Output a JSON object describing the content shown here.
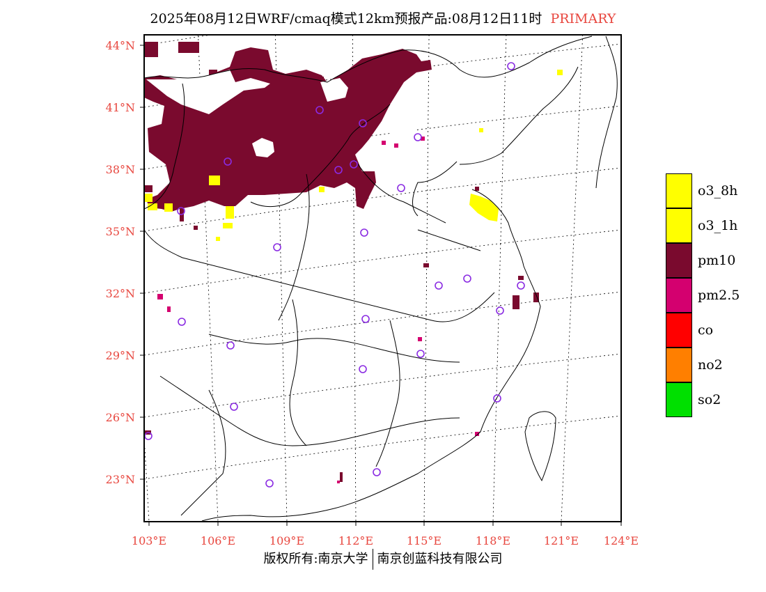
{
  "title": {
    "main": "2025年08月12日WRF/cmaq模式12km预报产品:08月12日11时",
    "tag": "PRIMARY",
    "tag_color": "#e8473f"
  },
  "axes": {
    "lat_labels": [
      "44°N",
      "41°N",
      "38°N",
      "35°N",
      "32°N",
      "29°N",
      "26°N",
      "23°N"
    ],
    "lon_labels": [
      "103°E",
      "106°E",
      "109°E",
      "112°E",
      "115°E",
      "118°E",
      "121°E",
      "124°E"
    ],
    "label_color": "#e8473f",
    "graticule": "dotted"
  },
  "legend": {
    "items": [
      {
        "label": "o3_8h",
        "color": "#ffff00"
      },
      {
        "label": "o3_1h",
        "color": "#ffff00"
      },
      {
        "label": "pm10",
        "color": "#7a0a2e"
      },
      {
        "label": "pm2.5",
        "color": "#d4006f"
      },
      {
        "label": "co",
        "color": "#ff0000"
      },
      {
        "label": "no2",
        "color": "#ff7f00"
      },
      {
        "label": "so2",
        "color": "#00e000"
      }
    ]
  },
  "map": {
    "station_marker": "purple-circle",
    "station_color": "#8a2be2",
    "pm10_color": "#7a0a2e",
    "o3_color": "#ffff00",
    "pm25_color": "#d4006f"
  },
  "footer": {
    "left": "版权所有:南京大学",
    "right": "南京创蓝科技有限公司"
  }
}
